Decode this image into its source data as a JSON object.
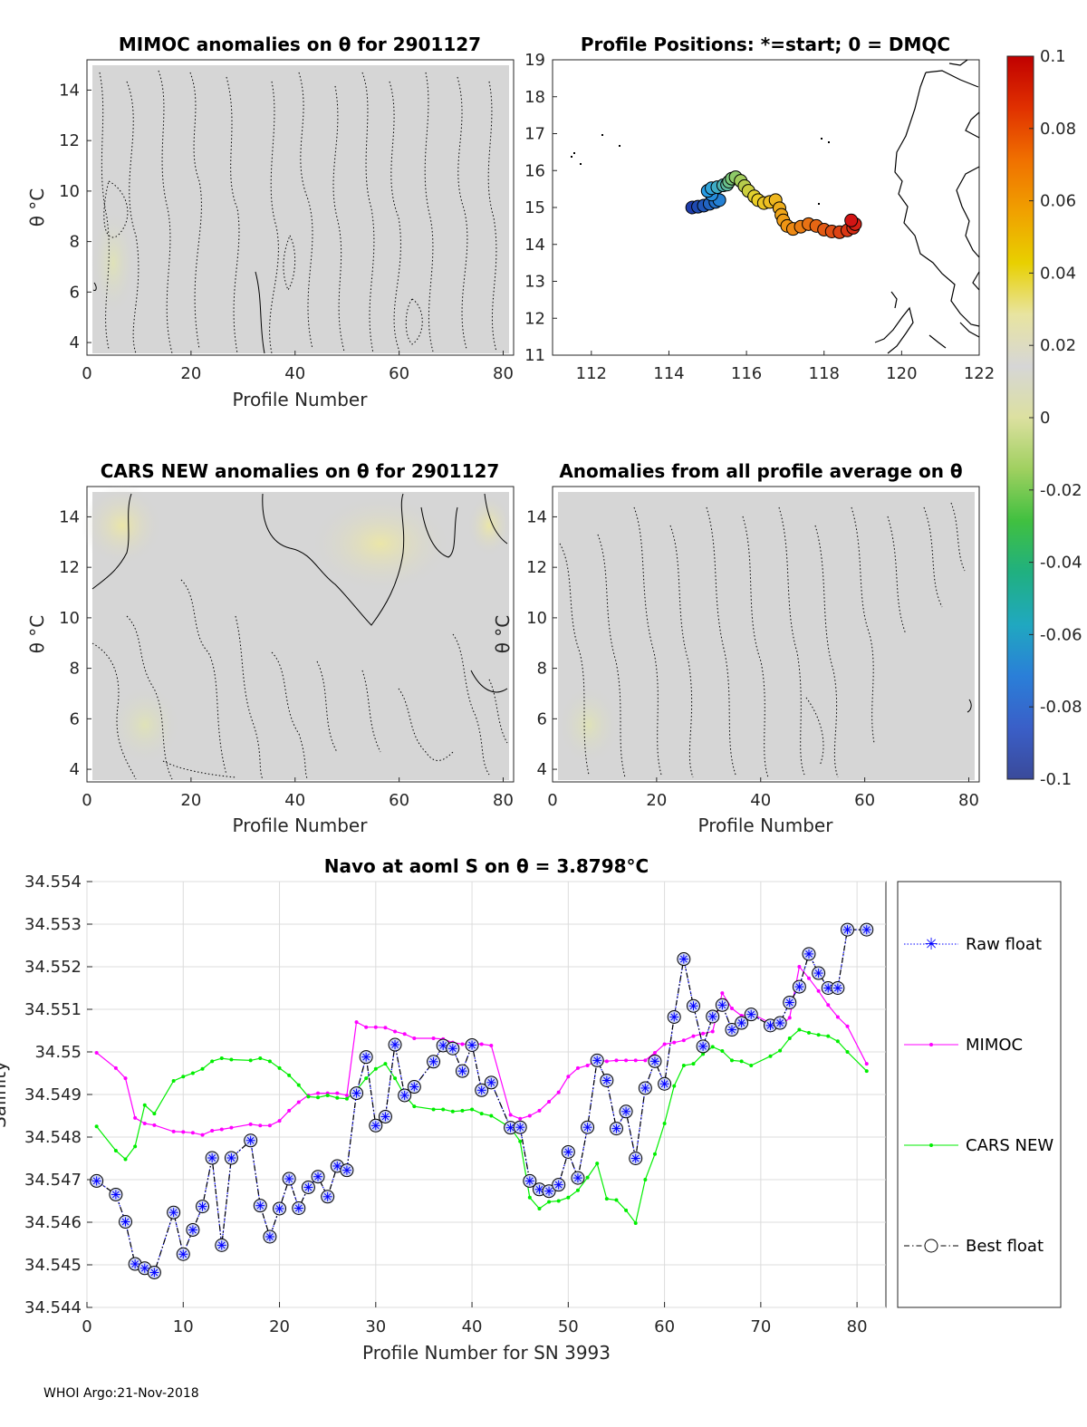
{
  "footer": "WHOI Argo:21-Nov-2018",
  "colors": {
    "raw": "#0000ff",
    "mimoc": "#ff00ff",
    "cars": "#00ee00",
    "best": "#000000",
    "field": "#d4d4d4",
    "warm": "#e8e6b0"
  },
  "colorbar": {
    "min": -0.1,
    "max": 0.1,
    "ticks": [
      {
        "v": 0.1,
        "t": "0.1"
      },
      {
        "v": 0.08,
        "t": "0.08"
      },
      {
        "v": 0.06,
        "t": "0.06"
      },
      {
        "v": 0.04,
        "t": "0.04"
      },
      {
        "v": 0.02,
        "t": "0.02"
      },
      {
        "v": 0,
        "t": "0"
      },
      {
        "v": -0.02,
        "t": "-0.02"
      },
      {
        "v": -0.04,
        "t": "-0.04"
      },
      {
        "v": -0.06,
        "t": "-0.06"
      },
      {
        "v": -0.08,
        "t": "-0.08"
      },
      {
        "v": -0.1,
        "t": "-0.1"
      }
    ],
    "stops": [
      "#3a4a9a",
      "#3a5fc8",
      "#2a7fd8",
      "#20a8c0",
      "#20b080",
      "#40c040",
      "#a0d060",
      "#dce0a0",
      "#d6d6d6",
      "#e8e4a0",
      "#e8d000",
      "#f0a000",
      "#f07000",
      "#e03000",
      "#c00000"
    ]
  },
  "chart_data": [
    {
      "type": "heatmap",
      "id": "mimoc",
      "title": "MIMOC anomalies on θ  for 2901127",
      "xlabel": "Profile Number",
      "ylabel": "θ °C",
      "xlim": [
        0,
        82
      ],
      "ylim": [
        3.5,
        15.2
      ],
      "xticks": [
        0,
        20,
        40,
        60,
        80
      ],
      "yticks": [
        4,
        6,
        8,
        10,
        12,
        14
      ]
    },
    {
      "type": "scatter",
      "id": "positions",
      "title": "Profile Positions: *=start; 0 = DMQC",
      "xlim": [
        111,
        122
      ],
      "ylim": [
        11,
        19
      ],
      "xticks": [
        112,
        114,
        116,
        118,
        120,
        122
      ],
      "yticks": [
        11,
        12,
        13,
        14,
        15,
        16,
        17,
        18,
        19
      ],
      "track": [
        [
          114.6,
          15.0
        ],
        [
          114.75,
          15.02
        ],
        [
          114.9,
          15.05
        ],
        [
          115.05,
          15.1
        ],
        [
          115.2,
          15.15
        ],
        [
          115.3,
          15.2
        ],
        [
          115.1,
          15.35
        ],
        [
          115.0,
          15.45
        ],
        [
          115.1,
          15.52
        ],
        [
          115.25,
          15.55
        ],
        [
          115.4,
          15.6
        ],
        [
          115.5,
          15.62
        ],
        [
          115.55,
          15.7
        ],
        [
          115.62,
          15.78
        ],
        [
          115.72,
          15.82
        ],
        [
          115.85,
          15.72
        ],
        [
          115.95,
          15.58
        ],
        [
          116.05,
          15.45
        ],
        [
          116.2,
          15.3
        ],
        [
          116.3,
          15.2
        ],
        [
          116.45,
          15.12
        ],
        [
          116.6,
          15.15
        ],
        [
          116.75,
          15.2
        ],
        [
          116.85,
          14.98
        ],
        [
          116.9,
          14.8
        ],
        [
          116.95,
          14.65
        ],
        [
          117.05,
          14.5
        ],
        [
          117.2,
          14.42
        ],
        [
          117.4,
          14.48
        ],
        [
          117.6,
          14.55
        ],
        [
          117.8,
          14.5
        ],
        [
          118.0,
          14.4
        ],
        [
          118.2,
          14.35
        ],
        [
          118.4,
          14.33
        ],
        [
          118.6,
          14.38
        ],
        [
          118.75,
          14.45
        ],
        [
          118.8,
          14.55
        ],
        [
          118.7,
          14.65
        ]
      ]
    },
    {
      "type": "heatmap",
      "id": "cars",
      "title": "CARS NEW anomalies on θ for 2901127",
      "xlabel": "Profile Number",
      "ylabel": "θ °C",
      "xlim": [
        0,
        82
      ],
      "ylim": [
        3.5,
        15.2
      ],
      "xticks": [
        0,
        20,
        40,
        60,
        80
      ],
      "yticks": [
        4,
        6,
        8,
        10,
        12,
        14
      ]
    },
    {
      "type": "heatmap",
      "id": "allavg",
      "title": "Anomalies from all profile average on θ",
      "xlabel": "Profile Number",
      "ylabel": "θ °C",
      "xlim": [
        0,
        82
      ],
      "ylim": [
        3.5,
        15.2
      ],
      "xticks": [
        0,
        20,
        40,
        60,
        80
      ],
      "yticks": [
        4,
        6,
        8,
        10,
        12,
        14
      ]
    },
    {
      "type": "line",
      "id": "salinity",
      "title": "Navo at aoml S on θ = 3.8798°C",
      "xlabel": "Profile Number for SN 3993",
      "ylabel": "Salinity",
      "xlim": [
        0,
        83
      ],
      "ylim": [
        34.544,
        34.554
      ],
      "xticks": [
        0,
        10,
        20,
        30,
        40,
        50,
        60,
        70,
        80
      ],
      "yticks": [
        {
          "v": 34.544,
          "t": "34.544"
        },
        {
          "v": 34.545,
          "t": "34.545"
        },
        {
          "v": 34.546,
          "t": "34.546"
        },
        {
          "v": 34.547,
          "t": "34.547"
        },
        {
          "v": 34.548,
          "t": "34.548"
        },
        {
          "v": 34.549,
          "t": "34.549"
        },
        {
          "v": 34.55,
          "t": "34.55"
        },
        {
          "v": 34.551,
          "t": "34.551"
        },
        {
          "v": 34.552,
          "t": "34.552"
        },
        {
          "v": 34.553,
          "t": "34.553"
        },
        {
          "v": 34.554,
          "t": "34.554"
        }
      ],
      "legend": [
        "Raw float",
        "MIMOC",
        "CARS NEW",
        "Best float"
      ],
      "series": [
        {
          "name": "Raw float",
          "x": [
            1,
            3,
            4,
            5,
            6,
            7,
            9,
            10,
            11,
            12,
            13,
            14,
            15,
            17,
            18,
            19,
            20,
            21,
            22,
            23,
            24,
            25,
            26,
            27,
            28,
            29,
            30,
            31,
            32,
            33,
            34,
            36,
            37,
            38,
            39,
            40,
            41,
            42,
            44,
            45,
            46,
            47,
            48,
            49,
            50,
            51,
            52,
            53,
            54,
            55,
            56,
            57,
            58,
            59,
            60,
            61,
            62,
            63,
            64,
            65,
            66,
            67,
            68,
            69,
            71,
            72,
            73,
            74,
            75,
            76,
            77,
            78,
            79,
            81
          ],
          "values": [
            34.54697,
            34.54665,
            34.54601,
            34.54502,
            34.54492,
            34.54482,
            34.54623,
            34.54525,
            34.54582,
            34.54637,
            34.54751,
            34.54546,
            34.54751,
            34.54792,
            34.54639,
            34.54566,
            34.54632,
            34.54702,
            34.54633,
            34.54682,
            34.54707,
            34.5466,
            34.54732,
            34.54722,
            34.54903,
            34.54988,
            34.54827,
            34.54848,
            34.55017,
            34.54898,
            34.54918,
            34.54977,
            34.55015,
            34.55008,
            34.54955,
            34.55016,
            34.5491,
            34.54928,
            34.54822,
            34.54823,
            34.54697,
            34.54677,
            34.54673,
            34.54688,
            34.54765,
            34.54704,
            34.54823,
            34.5498,
            34.54933,
            34.5482,
            34.5486,
            34.5475,
            34.54915,
            34.54978,
            34.54925,
            34.55082,
            34.55218,
            34.55108,
            34.55013,
            34.55083,
            34.5511,
            34.55052,
            34.55068,
            34.55088,
            34.55062,
            34.55068,
            34.55116,
            34.55153,
            34.5523,
            34.55185,
            34.5515,
            34.5515,
            34.55287,
            34.55287
          ]
        },
        {
          "name": "MIMOC",
          "x": [
            1,
            3,
            4,
            5,
            6,
            7,
            9,
            10,
            11,
            12,
            13,
            14,
            15,
            17,
            18,
            19,
            20,
            21,
            22,
            23,
            24,
            25,
            26,
            27,
            28,
            29,
            30,
            31,
            32,
            33,
            34,
            36,
            37,
            38,
            39,
            40,
            41,
            42,
            44,
            45,
            46,
            47,
            48,
            49,
            50,
            51,
            52,
            53,
            54,
            55,
            56,
            57,
            58,
            59,
            60,
            61,
            62,
            63,
            64,
            65,
            66,
            67,
            68,
            69,
            71,
            72,
            73,
            74,
            75,
            76,
            77,
            78,
            79,
            81
          ],
          "values": [
            34.54998,
            34.54962,
            34.54938,
            34.54845,
            34.54832,
            34.54828,
            34.54813,
            34.54812,
            34.5481,
            34.54805,
            34.54815,
            34.54818,
            34.54822,
            34.5483,
            34.54827,
            34.54827,
            34.54838,
            34.54862,
            34.54882,
            34.54898,
            34.54903,
            34.54903,
            34.54903,
            34.54898,
            34.5507,
            34.55058,
            34.55058,
            34.55057,
            34.55048,
            34.55042,
            34.55032,
            34.55032,
            34.5503,
            34.55022,
            34.55018,
            34.5502,
            34.55018,
            34.55015,
            34.54852,
            34.54843,
            34.5485,
            34.54862,
            34.54883,
            34.54905,
            34.54942,
            34.54962,
            34.54968,
            34.5498,
            34.54978,
            34.5498,
            34.5498,
            34.5498,
            34.5498,
            34.54998,
            34.55018,
            34.55022,
            34.55027,
            34.55037,
            34.55043,
            34.55048,
            34.55138,
            34.55102,
            34.55085,
            34.5509,
            34.55068,
            34.5506,
            34.5508,
            34.552,
            34.55173,
            34.55143,
            34.5511,
            34.55082,
            34.5506,
            34.54972
          ]
        },
        {
          "name": "CARS NEW",
          "x": [
            1,
            3,
            4,
            5,
            6,
            7,
            9,
            10,
            11,
            12,
            13,
            14,
            15,
            17,
            18,
            19,
            20,
            21,
            22,
            23,
            24,
            25,
            26,
            27,
            28,
            29,
            30,
            31,
            32,
            33,
            34,
            36,
            37,
            38,
            39,
            40,
            41,
            42,
            44,
            45,
            46,
            47,
            48,
            49,
            50,
            51,
            52,
            53,
            54,
            55,
            56,
            57,
            58,
            59,
            60,
            61,
            62,
            63,
            64,
            65,
            66,
            67,
            68,
            69,
            71,
            72,
            73,
            74,
            75,
            76,
            77,
            78,
            79,
            81
          ],
          "values": [
            34.54825,
            34.54768,
            34.54748,
            34.54778,
            34.54875,
            34.54855,
            34.54932,
            34.54942,
            34.5495,
            34.5496,
            34.54978,
            34.54985,
            34.54982,
            34.5498,
            34.54985,
            34.54978,
            34.54962,
            34.54945,
            34.54922,
            34.54895,
            34.54893,
            34.54898,
            34.54892,
            34.5489,
            34.5491,
            34.54938,
            34.5496,
            34.54972,
            34.54938,
            34.54898,
            34.54872,
            34.54865,
            34.54865,
            34.5486,
            34.54862,
            34.54865,
            34.54855,
            34.5485,
            34.54822,
            34.5479,
            34.54658,
            34.54632,
            34.54648,
            34.5465,
            34.54658,
            34.54675,
            34.54705,
            34.54738,
            34.54655,
            34.54652,
            34.54628,
            34.54598,
            34.547,
            34.5476,
            34.54832,
            34.5492,
            34.54968,
            34.54972,
            34.54995,
            34.55012,
            34.55002,
            34.5498,
            34.54978,
            34.54968,
            34.5499,
            34.55003,
            34.55032,
            34.55052,
            34.55045,
            34.5504,
            34.55037,
            34.55025,
            34.55,
            34.54955
          ]
        },
        {
          "name": "Best float",
          "x": [
            1,
            3,
            4,
            5,
            6,
            7,
            9,
            10,
            11,
            12,
            13,
            14,
            15,
            17,
            18,
            19,
            20,
            21,
            22,
            23,
            24,
            25,
            26,
            27,
            28,
            29,
            30,
            31,
            32,
            33,
            34,
            36,
            37,
            38,
            39,
            40,
            41,
            42,
            44,
            45,
            46,
            47,
            48,
            49,
            50,
            51,
            52,
            53,
            54,
            55,
            56,
            57,
            58,
            59,
            60,
            61,
            62,
            63,
            64,
            65,
            66,
            67,
            68,
            69,
            71,
            72,
            73,
            74,
            75,
            76,
            77,
            78,
            79,
            81
          ],
          "values": [
            34.54697,
            34.54665,
            34.54601,
            34.54502,
            34.54492,
            34.54482,
            34.54623,
            34.54525,
            34.54582,
            34.54637,
            34.54751,
            34.54546,
            34.54751,
            34.54792,
            34.54639,
            34.54566,
            34.54632,
            34.54702,
            34.54633,
            34.54682,
            34.54707,
            34.5466,
            34.54732,
            34.54722,
            34.54903,
            34.54988,
            34.54827,
            34.54848,
            34.55017,
            34.54898,
            34.54918,
            34.54977,
            34.55015,
            34.55008,
            34.54955,
            34.55016,
            34.5491,
            34.54928,
            34.54822,
            34.54823,
            34.54697,
            34.54677,
            34.54673,
            34.54688,
            34.54765,
            34.54704,
            34.54823,
            34.5498,
            34.54933,
            34.5482,
            34.5486,
            34.5475,
            34.54915,
            34.54978,
            34.54925,
            34.55082,
            34.55218,
            34.55108,
            34.55013,
            34.55083,
            34.5511,
            34.55052,
            34.55068,
            34.55088,
            34.55062,
            34.55068,
            34.55116,
            34.55153,
            34.5523,
            34.55185,
            34.5515,
            34.5515,
            34.55287,
            34.55287
          ]
        }
      ]
    }
  ]
}
